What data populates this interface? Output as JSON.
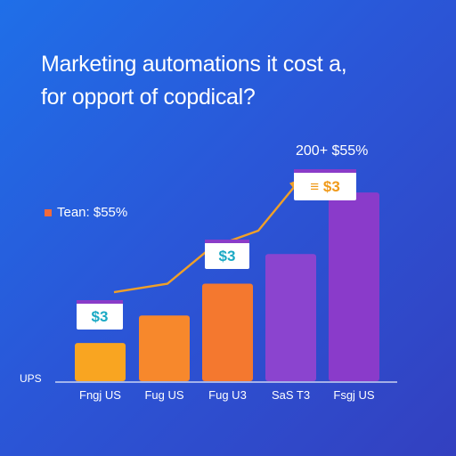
{
  "title_line1": "Marketing automations it cost a,",
  "title_line2": "for opport of copdical?",
  "legend_label": "Tean: $55%",
  "top_annotation": "200+ $55%",
  "y_axis_label": "UPS",
  "colors": {
    "background_start": "#1f6fe8",
    "background_end": "#3340c0",
    "line": "#f0a028",
    "legend_swatch": "#f26a3a",
    "callout_bg": "#ffffff",
    "callout_teal": "#1aa9c4",
    "callout_orange": "#f09a1a",
    "callout_bar": "#8a3cc8"
  },
  "chart_data": {
    "type": "bar",
    "title": "Marketing automations it cost a, for opport of copdical?",
    "categories": [
      "Fngj US",
      "Fug US",
      "Fug U3",
      "SаS T3",
      "Fsgj US"
    ],
    "values": [
      18,
      31,
      46,
      60,
      89
    ],
    "bar_colors": [
      "#f9a521",
      "#f7882c",
      "#f4782f",
      "#8b44cf",
      "#8a3bca"
    ],
    "ylabel": "UPS",
    "ylim": [
      0,
      100
    ],
    "grid": false,
    "legend_position": "left",
    "line_series": {
      "x_index": [
        0,
        1,
        2,
        3,
        4
      ],
      "values": [
        42,
        46,
        63,
        71,
        93
      ]
    },
    "callouts": [
      {
        "category_index": 0,
        "text": "$3",
        "style": "teal"
      },
      {
        "category_index": 2,
        "text": "$3",
        "style": "teal"
      },
      {
        "category_index": 4,
        "text": "≡ $3",
        "style": "orange"
      }
    ]
  }
}
